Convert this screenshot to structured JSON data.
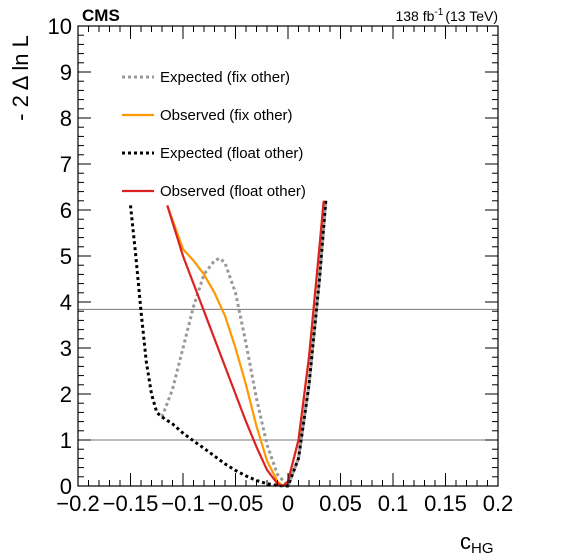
{
  "chart_data": {
    "type": "line",
    "experiment_label": "CMS",
    "lumi_label": "138 fb",
    "lumi_exponent": "-1",
    "energy_label": "(13 TeV)",
    "xlabel_main": "c",
    "xlabel_sub": "HG",
    "ylabel": "- 2 Δ ln L",
    "xlim": [
      -0.2,
      0.2
    ],
    "ylim": [
      0,
      10
    ],
    "xticks": [
      -0.2,
      -0.15,
      -0.1,
      -0.05,
      0,
      0.05,
      0.1,
      0.15,
      0.2
    ],
    "xtick_labels": [
      "−0.2",
      "−0.15",
      "−0.1",
      "−0.05",
      "0",
      "0.05",
      "0.1",
      "0.15",
      "0.2"
    ],
    "yticks": [
      0,
      1,
      2,
      3,
      4,
      5,
      6,
      7,
      8,
      9,
      10
    ],
    "ytick_labels": [
      "0",
      "1",
      "2",
      "3",
      "4",
      "5",
      "6",
      "7",
      "8",
      "9",
      "10"
    ],
    "reference_lines": [
      1.0,
      3.84
    ],
    "grid": false,
    "legend_position": "top-left",
    "series": [
      {
        "name": "Expected (fix other)",
        "color": "#999999",
        "style": "dotted",
        "x": [
          -0.12,
          -0.11,
          -0.1,
          -0.09,
          -0.08,
          -0.07,
          -0.065,
          -0.06,
          -0.05,
          -0.04,
          -0.03,
          -0.02,
          -0.01,
          0,
          0.01,
          0.02,
          0.03,
          0.036
        ],
        "y": [
          1.5,
          2.1,
          3.0,
          3.9,
          4.6,
          4.9,
          4.95,
          4.85,
          4.2,
          3.1,
          1.9,
          0.9,
          0.25,
          0,
          0.6,
          2.2,
          4.5,
          6.2
        ]
      },
      {
        "name": "Observed (fix other)",
        "color": "#ff9900",
        "style": "solid",
        "x": [
          -0.115,
          -0.1,
          -0.09,
          -0.08,
          -0.07,
          -0.06,
          -0.05,
          -0.04,
          -0.03,
          -0.02,
          -0.01,
          -0.005,
          0,
          0.01,
          0.02,
          0.03,
          0.034
        ],
        "y": [
          6.1,
          5.15,
          4.9,
          4.6,
          4.2,
          3.7,
          3.0,
          2.2,
          1.3,
          0.55,
          0.1,
          0,
          0.1,
          1.0,
          2.8,
          5.2,
          6.2
        ]
      },
      {
        "name": "Expected (float other)",
        "color": "#000000",
        "style": "dotted",
        "x": [
          -0.15,
          -0.145,
          -0.14,
          -0.135,
          -0.13,
          -0.125,
          -0.12,
          -0.11,
          -0.1,
          -0.09,
          -0.08,
          -0.07,
          -0.06,
          -0.05,
          -0.04,
          -0.03,
          -0.02,
          -0.01,
          0,
          0.01,
          0.02,
          0.03,
          0.036
        ],
        "y": [
          6.1,
          5.0,
          3.8,
          2.7,
          2.0,
          1.6,
          1.5,
          1.35,
          1.15,
          0.98,
          0.82,
          0.65,
          0.48,
          0.34,
          0.22,
          0.12,
          0.05,
          0.01,
          0,
          0.6,
          2.2,
          4.5,
          6.2
        ]
      },
      {
        "name": "Observed (float other)",
        "color": "#dd2222",
        "style": "solid",
        "x": [
          -0.115,
          -0.1,
          -0.09,
          -0.08,
          -0.07,
          -0.06,
          -0.05,
          -0.04,
          -0.03,
          -0.02,
          -0.01,
          -0.005,
          0,
          0.01,
          0.02,
          0.03,
          0.034
        ],
        "y": [
          6.1,
          5.0,
          4.4,
          3.8,
          3.2,
          2.6,
          2.0,
          1.4,
          0.85,
          0.35,
          0.05,
          0,
          0.1,
          1.0,
          2.8,
          5.2,
          6.2
        ]
      }
    ]
  }
}
